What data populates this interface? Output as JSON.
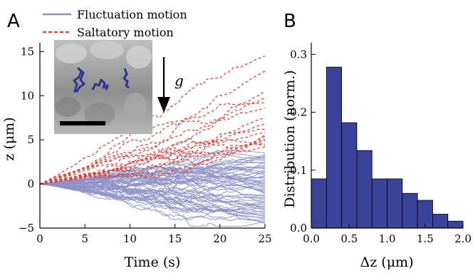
{
  "panels": {
    "a_label": "A",
    "b_label": "B"
  },
  "chart_data": [
    {
      "type": "line",
      "xlabel": "Time (s)",
      "ylabel": "z (μm)",
      "xlim": [
        0,
        25
      ],
      "ylim": [
        -5,
        16
      ],
      "x_ticks": [
        "0",
        "5",
        "10",
        "15",
        "20",
        "25"
      ],
      "y_ticks": [
        "−5",
        "0",
        "5",
        "10",
        "15"
      ],
      "legend_position": "top-left",
      "series": [
        {
          "name": "Fluctuation motion",
          "color": "#8e92c6",
          "style": "solid",
          "count": 60,
          "final_z_range": [
            -4.5,
            3.5
          ]
        },
        {
          "name": "Saltatory motion",
          "color": "#d9453d",
          "style": "dashed",
          "count": 17,
          "final_z": [
            14.5,
            12.8,
            10.5,
            9.8,
            9.2,
            8.6,
            7.5,
            6.8,
            6.2,
            5.9,
            5.6,
            5.4,
            5.1,
            4.9,
            4.6,
            4.4,
            4.2
          ]
        }
      ],
      "annotations": {
        "gravity_label": "g",
        "inset": "micrograph with trajectories and scale bar"
      },
      "grid": false
    },
    {
      "type": "bar",
      "xlabel": "Δz (μm)",
      "ylabel": "Distribution (norm.)",
      "xlim": [
        0,
        2.0
      ],
      "ylim": [
        0,
        0.32
      ],
      "x_ticks": [
        "0.0",
        "0.5",
        "1.0",
        "1.5",
        "2.0"
      ],
      "y_ticks": [
        "0.0",
        "0.1",
        "0.2",
        "0.3"
      ],
      "bin_edges": [
        0.0,
        0.2,
        0.4,
        0.6,
        0.8,
        1.0,
        1.2,
        1.4,
        1.6,
        1.8,
        2.0
      ],
      "values": [
        0.085,
        0.278,
        0.182,
        0.134,
        0.085,
        0.085,
        0.06,
        0.048,
        0.024,
        0.012
      ],
      "bar_color": "#3a4397",
      "grid": false
    }
  ]
}
